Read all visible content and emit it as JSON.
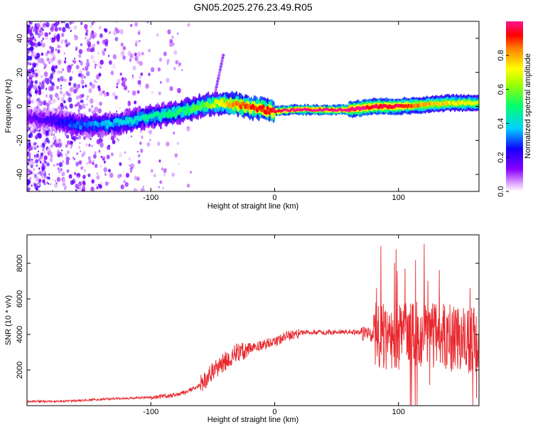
{
  "title": "GN05.2025.276.23.49.R05",
  "chart_data": [
    {
      "type": "heatmap",
      "xlabel": "Height of straight line (km)",
      "ylabel": "Frequency (Hz)",
      "xlim": [
        -200,
        165
      ],
      "ylim": [
        -50,
        50
      ],
      "xticks": [
        -100,
        0,
        100
      ],
      "yticks": [
        -40,
        -20,
        0,
        20,
        40
      ],
      "colorbar": {
        "label": "Normalized spectral amplitude",
        "range": [
          0,
          1
        ],
        "ticks": [
          "0.0",
          "0.2",
          "0.4",
          "0.6",
          "0.8"
        ]
      },
      "ridge": {
        "x": [
          -200,
          -180,
          -160,
          -140,
          -120,
          -100,
          -80,
          -60,
          -45,
          -30,
          -15,
          0,
          15,
          30,
          60,
          80,
          100,
          120,
          140,
          160
        ],
        "frequency": [
          -7,
          -8,
          -11,
          -11,
          -9,
          -6,
          -4,
          0,
          2,
          1,
          -1,
          -3,
          -2,
          -2,
          -2,
          0,
          0,
          1,
          2,
          2
        ],
        "amplitude": [
          0.15,
          0.2,
          0.3,
          0.35,
          0.4,
          0.45,
          0.5,
          0.55,
          0.7,
          0.85,
          0.9,
          0.95,
          1.0,
          1.0,
          1.0,
          0.95,
          0.95,
          0.8,
          0.75,
          0.7
        ]
      }
    },
    {
      "type": "line",
      "xlabel": "Height of straight line (km)",
      "ylabel": "SNR (10 * v/v)",
      "xlim": [
        -200,
        165
      ],
      "ylim": [
        0,
        9600
      ],
      "xticks": [
        -100,
        0,
        100
      ],
      "yticks": [
        2000,
        4000,
        6000,
        8000
      ],
      "series": [
        {
          "name": "SNR",
          "color": "#e8282d",
          "x": [
            -200,
            -180,
            -160,
            -140,
            -120,
            -100,
            -80,
            -70,
            -60,
            -50,
            -40,
            -30,
            -20,
            -10,
            0,
            10,
            20,
            30,
            40,
            50,
            60,
            70,
            75,
            80,
            85,
            90,
            95,
            100,
            110,
            120,
            130,
            140,
            150,
            160,
            165
          ],
          "y": [
            250,
            230,
            280,
            360,
            420,
            460,
            600,
            800,
            1200,
            1900,
            2500,
            3000,
            3250,
            3400,
            3600,
            3900,
            4100,
            4150,
            4100,
            4150,
            4150,
            4100,
            4000,
            3900,
            4000,
            3800,
            3800,
            3900,
            4000,
            4000,
            3900,
            3800,
            3800,
            3700,
            3700
          ]
        }
      ]
    }
  ]
}
